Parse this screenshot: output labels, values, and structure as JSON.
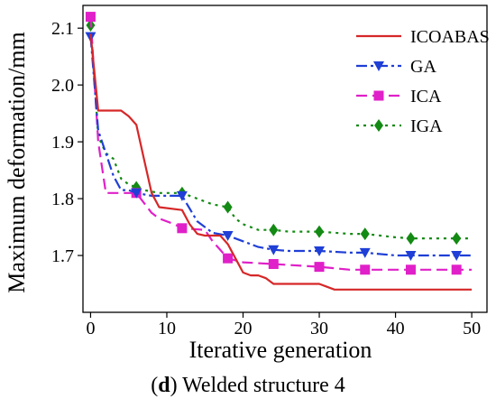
{
  "caption": {
    "letter": "d",
    "text": ") Welded structure 4",
    "open": "("
  },
  "chart_data": {
    "type": "line",
    "xlabel": "Iterative generation",
    "ylabel": "Maximum deformation/mm",
    "xlim": [
      -1,
      52
    ],
    "ylim": [
      1.6,
      2.14
    ],
    "xticks": [
      0,
      10,
      20,
      30,
      40,
      50
    ],
    "yticks": [
      1.7,
      1.8,
      1.9,
      2.0,
      2.1
    ],
    "grid": false,
    "legend": "top-right",
    "series": [
      {
        "name": "ICOABAS",
        "color": "#d62728",
        "dash": "",
        "marker": "none",
        "x": [
          0,
          1,
          4,
          5,
          6,
          7,
          8,
          9,
          12,
          13,
          14,
          15,
          16,
          17,
          18,
          19,
          20,
          21,
          22,
          23,
          24,
          30,
          31,
          32,
          50
        ],
        "y": [
          2.09,
          1.955,
          1.955,
          1.945,
          1.93,
          1.87,
          1.81,
          1.785,
          1.78,
          1.755,
          1.738,
          1.735,
          1.735,
          1.735,
          1.72,
          1.695,
          1.67,
          1.665,
          1.665,
          1.66,
          1.65,
          1.65,
          1.645,
          1.64,
          1.64
        ]
      },
      {
        "name": "GA",
        "color": "#1f3fd6",
        "dash": "12,4,3,4",
        "marker": "triangle-down",
        "x": [
          0,
          1,
          2,
          3,
          4,
          5,
          6,
          8,
          10,
          12,
          14,
          16,
          18,
          20,
          22,
          24,
          26,
          30,
          34,
          36,
          40,
          42,
          48,
          50
        ],
        "y": [
          2.085,
          1.92,
          1.88,
          1.84,
          1.815,
          1.815,
          1.81,
          1.805,
          1.805,
          1.805,
          1.76,
          1.74,
          1.735,
          1.725,
          1.715,
          1.71,
          1.708,
          1.708,
          1.705,
          1.705,
          1.7,
          1.7,
          1.7,
          1.7
        ],
        "marker_x": [
          0,
          6,
          12,
          18,
          24,
          30,
          36,
          42,
          48
        ]
      },
      {
        "name": "ICA",
        "color": "#e020c8",
        "dash": "12,6",
        "marker": "square",
        "x": [
          0,
          1,
          2,
          3,
          5,
          6,
          8,
          9,
          11,
          12,
          15,
          16,
          17,
          18,
          20,
          24,
          30,
          34,
          36,
          42,
          48,
          50
        ],
        "y": [
          2.12,
          1.9,
          1.81,
          1.81,
          1.81,
          1.81,
          1.775,
          1.765,
          1.755,
          1.748,
          1.745,
          1.725,
          1.71,
          1.695,
          1.688,
          1.685,
          1.68,
          1.675,
          1.675,
          1.675,
          1.675,
          1.675
        ],
        "marker_x": [
          0,
          6,
          12,
          18,
          24,
          30,
          36,
          42,
          48
        ]
      },
      {
        "name": "IGA",
        "color": "#138a13",
        "dash": "3,5",
        "marker": "diamond",
        "x": [
          0,
          1,
          2,
          3,
          4,
          5,
          6,
          7,
          9,
          12,
          14,
          16,
          18,
          19,
          20,
          22,
          24,
          26,
          30,
          34,
          36,
          40,
          42,
          48,
          50
        ],
        "y": [
          2.105,
          1.91,
          1.88,
          1.87,
          1.835,
          1.825,
          1.82,
          1.815,
          1.81,
          1.81,
          1.8,
          1.79,
          1.785,
          1.765,
          1.755,
          1.745,
          1.745,
          1.742,
          1.742,
          1.738,
          1.738,
          1.732,
          1.73,
          1.73,
          1.73
        ],
        "marker_x": [
          0,
          6,
          12,
          18,
          24,
          30,
          36,
          42,
          48
        ]
      }
    ]
  }
}
